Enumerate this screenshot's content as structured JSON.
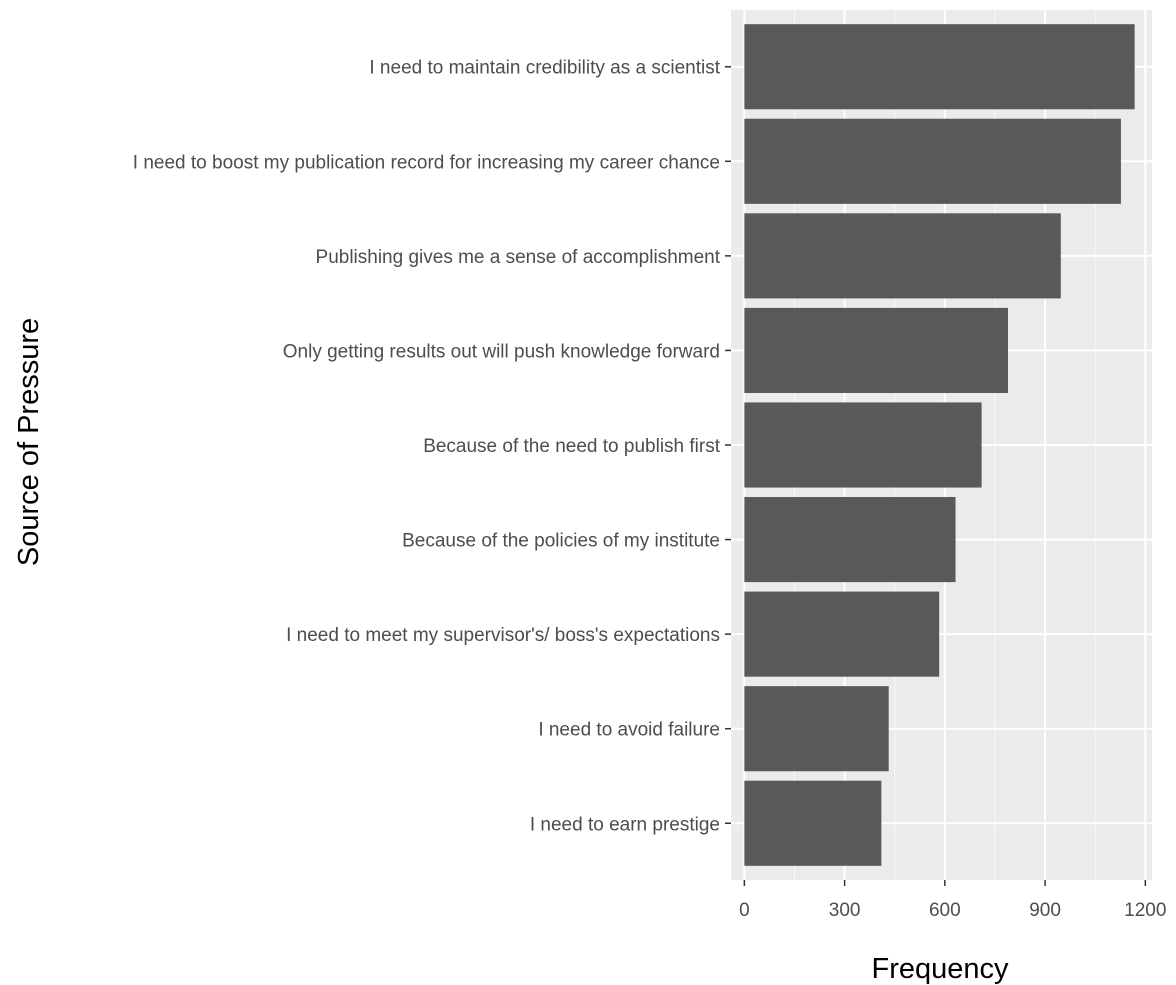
{
  "chart_data": {
    "type": "bar",
    "orientation": "horizontal",
    "xlabel": "Frequency",
    "ylabel": "Source of Pressure",
    "xlim": [
      -40,
      1220
    ],
    "x_ticks": [
      0,
      300,
      600,
      900,
      1200
    ],
    "x_tick_labels": [
      "0",
      "300",
      "600",
      "900",
      "1200"
    ],
    "grid": true,
    "colors": {
      "panel_background": "#EBEBEB",
      "grid_major": "#FFFFFF",
      "bar": "#595959",
      "tick_text": "#4D4D4D",
      "axis_title": "#000000"
    },
    "categories": [
      "I need to maintain credibility as a scientist",
      "I need to boost my publication record for increasing my career chance",
      "Publishing gives me a sense of accomplishment",
      "Only getting results out will push knowledge forward",
      "Because of the need to publish first",
      "Because of the policies of my institute",
      "I need to meet my supervisor's/ boss's expectations",
      "I need to avoid failure",
      "I need to earn prestige"
    ],
    "values": [
      1168,
      1127,
      947,
      789,
      710,
      632,
      583,
      432,
      410
    ]
  }
}
